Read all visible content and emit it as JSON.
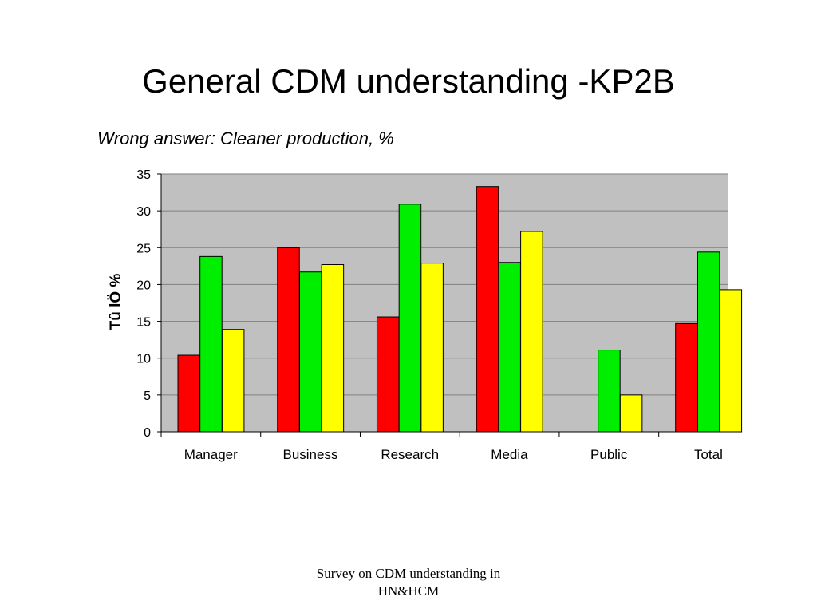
{
  "slide": {
    "title": "General CDM understanding -KP2B",
    "footer_line1": "Survey on CDM understanding in",
    "footer_line2": "HN&HCM"
  },
  "colors": {
    "plot_background": "#c0c0c0",
    "series": [
      "#ff0000",
      "#00ee00",
      "#ffff00"
    ]
  },
  "chart_data": {
    "type": "bar",
    "title": "Wrong answer: Cleaner production, %",
    "ylabel": "Tû lÖ %",
    "xlabel": "",
    "categories": [
      "Manager",
      "Business",
      "Research",
      "Media",
      "Public",
      "Total"
    ],
    "series": [
      {
        "values": [
          10.4,
          25.0,
          15.6,
          33.3,
          null,
          14.7
        ]
      },
      {
        "values": [
          23.8,
          21.7,
          30.9,
          23.0,
          11.1,
          24.4
        ]
      },
      {
        "values": [
          13.9,
          22.7,
          22.9,
          27.2,
          5.0,
          19.3
        ]
      }
    ],
    "ylim": [
      0,
      35
    ],
    "yticks": [
      0,
      5,
      10,
      15,
      20,
      25,
      30,
      35
    ],
    "grid": true,
    "legend": "none"
  }
}
